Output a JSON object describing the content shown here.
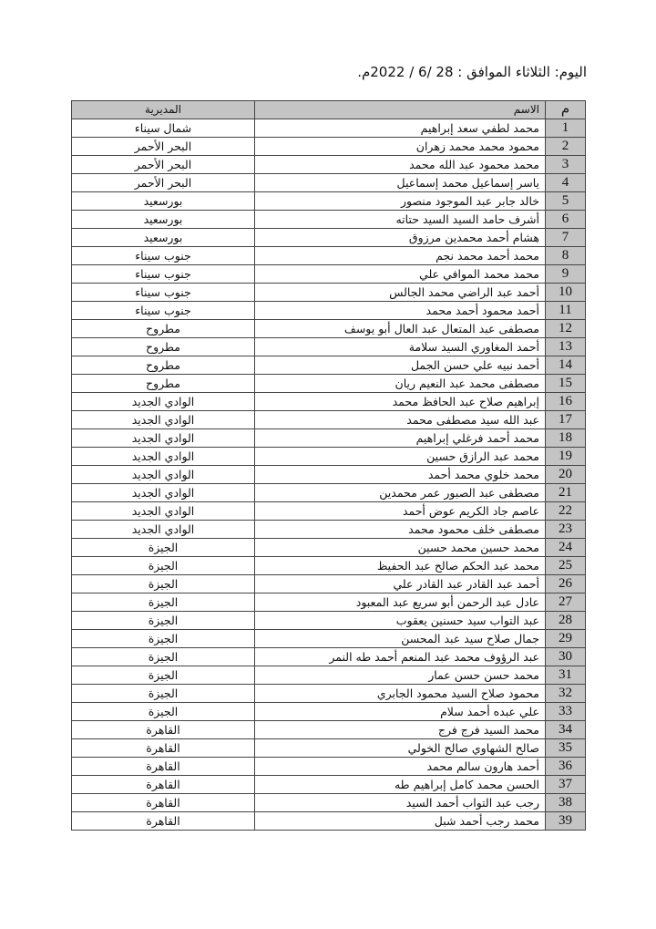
{
  "header": {
    "title": "اليوم: الثلاثاء الموافق :  28 /6 / 2022م."
  },
  "table": {
    "columns": {
      "num": "م",
      "name": "الاسم",
      "directorate": "المديرية"
    },
    "rows": [
      {
        "num": "1",
        "name": "محمد لطفي سعد إبراهيم",
        "directorate": "شمال سيناء"
      },
      {
        "num": "2",
        "name": "محمود محمد محمد زهران",
        "directorate": "البحر الأحمر"
      },
      {
        "num": "3",
        "name": "محمد محمود عبد الله محمد",
        "directorate": "البحر الأحمر"
      },
      {
        "num": "4",
        "name": "ياسر إسماعيل محمد إسماعيل",
        "directorate": "البحر الأحمر"
      },
      {
        "num": "5",
        "name": "خالد جابر عبد الموجود منصور",
        "directorate": "بورسعيد"
      },
      {
        "num": "6",
        "name": "أشرف حامد السيد السيد حتاته",
        "directorate": "بورسعيد"
      },
      {
        "num": "7",
        "name": "هشام أحمد محمدين مرزوق",
        "directorate": "بورسعيد"
      },
      {
        "num": "8",
        "name": "محمد أحمد محمد نجم",
        "directorate": "جنوب سيناء"
      },
      {
        "num": "9",
        "name": "محمد محمد الموافي علي",
        "directorate": "جنوب سيناء"
      },
      {
        "num": "10",
        "name": "أحمد عبد الراضي محمد الجالس",
        "directorate": "جنوب سيناء"
      },
      {
        "num": "11",
        "name": "أحمد محمود أحمد محمد",
        "directorate": "جنوب سيناء"
      },
      {
        "num": "12",
        "name": "مصطفى عبد المتعال عبد العال أبو يوسف",
        "directorate": "مطروح"
      },
      {
        "num": "13",
        "name": "أحمد المغاوري السيد سلامة",
        "directorate": "مطروح"
      },
      {
        "num": "14",
        "name": "أحمد نبيه علي حسن الجمل",
        "directorate": "مطروح"
      },
      {
        "num": "15",
        "name": "مصطفى محمد عبد النعيم ريان",
        "directorate": "مطروح"
      },
      {
        "num": "16",
        "name": "إبراهيم صلاح عبد الحافظ محمد",
        "directorate": "الوادي الجديد"
      },
      {
        "num": "17",
        "name": "عبد الله سيد مصطفى محمد",
        "directorate": "الوادي الجديد"
      },
      {
        "num": "18",
        "name": "محمد أحمد فرغلي إبراهيم",
        "directorate": "الوادي الجديد"
      },
      {
        "num": "19",
        "name": "محمد عبد الرازق حسين",
        "directorate": "الوادي الجديد"
      },
      {
        "num": "20",
        "name": "محمد خلوي محمد أحمد",
        "directorate": "الوادي الجديد"
      },
      {
        "num": "21",
        "name": "مصطفى عبد الصبور عمر محمدين",
        "directorate": "الوادي الجديد"
      },
      {
        "num": "22",
        "name": "عاصم جاد الكريم عوض أحمد",
        "directorate": "الوادي الجديد"
      },
      {
        "num": "23",
        "name": "مصطفى خلف محمود محمد",
        "directorate": "الوادي الجديد"
      },
      {
        "num": "24",
        "name": "محمد حسين محمد حسين",
        "directorate": "الجيزة"
      },
      {
        "num": "25",
        "name": "محمد عبد الحكم صالح عبد الحفيظ",
        "directorate": "الجيزة"
      },
      {
        "num": "26",
        "name": "أحمد عبد القادر عبد القادر علي",
        "directorate": "الجيزة"
      },
      {
        "num": "27",
        "name": "عادل عبد الرحمن أبو سريع عبد المعبود",
        "directorate": "الجيزة"
      },
      {
        "num": "28",
        "name": "عبد التواب سيد حسنين يعقوب",
        "directorate": "الجيزة"
      },
      {
        "num": "29",
        "name": "جمال صلاح سيد عبد المحسن",
        "directorate": "الجيزة"
      },
      {
        "num": "30",
        "name": "عبد الرؤوف محمد عبد المنعم أحمد طه النمر",
        "directorate": "الجيزة"
      },
      {
        "num": "31",
        "name": "محمد حسن حسن عمار",
        "directorate": "الجيزة"
      },
      {
        "num": "32",
        "name": "محمود صلاح السيد محمود الجابري",
        "directorate": "الجيزة"
      },
      {
        "num": "33",
        "name": "علي عبده أحمد سلام",
        "directorate": "الجيزة"
      },
      {
        "num": "34",
        "name": "محمد السيد فرج فرج",
        "directorate": "القاهرة"
      },
      {
        "num": "35",
        "name": "صالح الشهاوي صالح الخولي",
        "directorate": "القاهرة"
      },
      {
        "num": "36",
        "name": "أحمد هارون سالم محمد",
        "directorate": "القاهرة"
      },
      {
        "num": "37",
        "name": "الحسن محمد كامل إبراهيم طه",
        "directorate": "القاهرة"
      },
      {
        "num": "38",
        "name": "رجب عبد التواب أحمد السيد",
        "directorate": "القاهرة"
      },
      {
        "num": "39",
        "name": "محمد رجب أحمد شبل",
        "directorate": "القاهرة"
      }
    ]
  }
}
